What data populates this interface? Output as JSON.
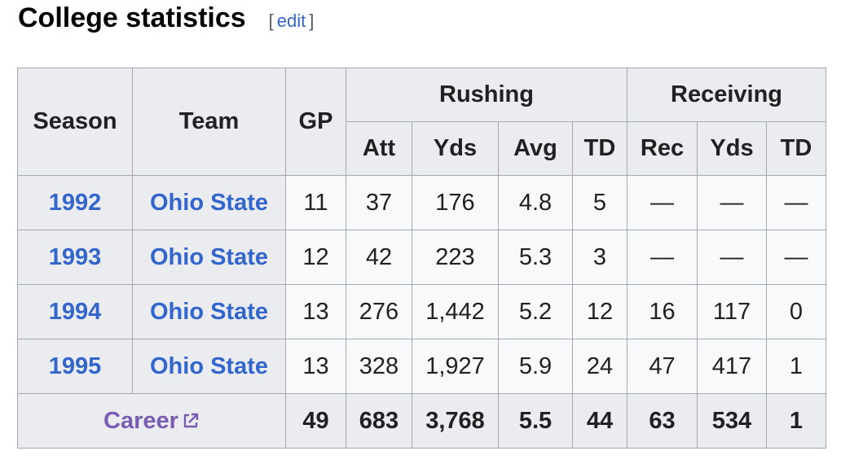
{
  "heading": {
    "title": "College statistics",
    "edit_open": "[",
    "edit_label": "edit",
    "edit_close": "]"
  },
  "table": {
    "headers": {
      "season": "Season",
      "team": "Team",
      "gp": "GP",
      "rushing": "Rushing",
      "receiving": "Receiving",
      "rushing_cols": [
        "Att",
        "Yds",
        "Avg",
        "TD"
      ],
      "receiving_cols": [
        "Rec",
        "Yds",
        "TD"
      ]
    },
    "rows": [
      {
        "season": "1992",
        "team": "Ohio State",
        "gp": "11",
        "att": "37",
        "rush_yds": "176",
        "avg": "4.8",
        "rush_td": "5",
        "rec": "—",
        "rec_yds": "—",
        "rec_td": "—"
      },
      {
        "season": "1993",
        "team": "Ohio State",
        "gp": "12",
        "att": "42",
        "rush_yds": "223",
        "avg": "5.3",
        "rush_td": "3",
        "rec": "—",
        "rec_yds": "—",
        "rec_td": "—"
      },
      {
        "season": "1994",
        "team": "Ohio State",
        "gp": "13",
        "att": "276",
        "rush_yds": "1,442",
        "avg": "5.2",
        "rush_td": "12",
        "rec": "16",
        "rec_yds": "117",
        "rec_td": "0"
      },
      {
        "season": "1995",
        "team": "Ohio State",
        "gp": "13",
        "att": "328",
        "rush_yds": "1,927",
        "avg": "5.9",
        "rush_td": "24",
        "rec": "47",
        "rec_yds": "417",
        "rec_td": "1"
      }
    ],
    "career": {
      "label": "Career",
      "icon": "external-link-icon",
      "gp": "49",
      "att": "683",
      "rush_yds": "3,768",
      "avg": "5.5",
      "rush_td": "44",
      "rec": "63",
      "rec_yds": "534",
      "rec_td": "1"
    }
  },
  "colors": {
    "link": "#3366cc",
    "visited_link": "#795cb2",
    "header_bg": "#eaecf0",
    "cell_bg": "#f8f9fa",
    "border": "#a2a9b1"
  }
}
